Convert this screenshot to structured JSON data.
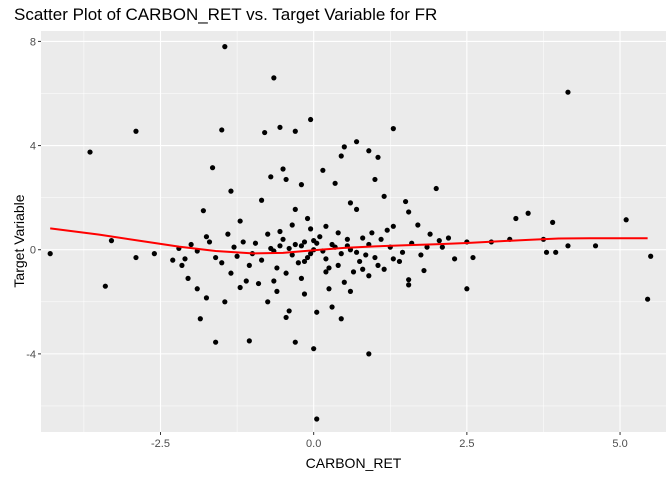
{
  "chart_data": {
    "type": "scatter",
    "title": "Scatter Plot of CARBON_RET vs. Target Variable for FR",
    "xlabel": "CARBON_RET",
    "ylabel": "Target Variable",
    "xlim": [
      -4.45,
      5.75
    ],
    "ylim": [
      -7.0,
      8.4
    ],
    "x_ticks": [
      -2.5,
      0.0,
      2.5,
      5.0
    ],
    "x_tick_labels": [
      "-2.5",
      "0.0",
      "2.5",
      "5.0"
    ],
    "y_ticks": [
      -4,
      0,
      4,
      8
    ],
    "y_tick_labels": [
      "-4",
      "0",
      "4",
      "8"
    ],
    "grid": true,
    "legend": "none",
    "colors": {
      "panel": "#ebebeb",
      "grid_major": "#ffffff",
      "points": "#000000",
      "smooth_line": "#ff0000"
    },
    "series": [
      {
        "kind": "points",
        "points": [
          [
            -1.45,
            7.8
          ],
          [
            -0.65,
            6.6
          ],
          [
            4.15,
            6.05
          ],
          [
            -0.05,
            5.0
          ],
          [
            -2.9,
            4.55
          ],
          [
            -0.55,
            4.7
          ],
          [
            -0.3,
            4.55
          ],
          [
            -0.8,
            4.5
          ],
          [
            -1.5,
            4.6
          ],
          [
            1.3,
            4.65
          ],
          [
            0.7,
            4.15
          ],
          [
            -3.65,
            3.75
          ],
          [
            0.5,
            3.95
          ],
          [
            0.9,
            3.8
          ],
          [
            0.45,
            3.6
          ],
          [
            1.05,
            3.55
          ],
          [
            -0.5,
            3.1
          ],
          [
            -1.65,
            3.15
          ],
          [
            -0.7,
            2.8
          ],
          [
            -0.45,
            2.7
          ],
          [
            -0.2,
            2.5
          ],
          [
            0.35,
            2.55
          ],
          [
            0.15,
            3.05
          ],
          [
            -1.35,
            2.25
          ],
          [
            1.0,
            2.7
          ],
          [
            2.0,
            2.35
          ],
          [
            1.15,
            2.05
          ],
          [
            -0.85,
            1.9
          ],
          [
            -0.3,
            1.55
          ],
          [
            0.6,
            1.8
          ],
          [
            1.5,
            1.85
          ],
          [
            -1.8,
            1.5
          ],
          [
            0.7,
            1.55
          ],
          [
            1.55,
            1.45
          ],
          [
            -0.1,
            1.2
          ],
          [
            3.5,
            1.4
          ],
          [
            5.1,
            1.15
          ],
          [
            3.9,
            1.05
          ],
          [
            3.3,
            1.2
          ],
          [
            1.7,
            0.95
          ],
          [
            -1.2,
            1.1
          ],
          [
            0.2,
            0.9
          ],
          [
            -0.35,
            0.95
          ],
          [
            1.3,
            0.9
          ],
          [
            -3.3,
            0.35
          ],
          [
            -2.9,
            -0.3
          ],
          [
            -4.3,
            -0.15
          ],
          [
            -3.4,
            -1.4
          ],
          [
            -2.6,
            -0.15
          ],
          [
            -2.3,
            -0.4
          ],
          [
            -2.15,
            -0.6
          ],
          [
            -2.05,
            -1.1
          ],
          [
            -1.9,
            -1.5
          ],
          [
            -1.75,
            -1.85
          ],
          [
            -1.45,
            -2.0
          ],
          [
            -1.85,
            -2.65
          ],
          [
            -1.6,
            -3.55
          ],
          [
            -1.05,
            -3.5
          ],
          [
            -0.3,
            -3.55
          ],
          [
            0.0,
            -3.8
          ],
          [
            -0.75,
            -2.0
          ],
          [
            -0.4,
            -2.35
          ],
          [
            -0.45,
            -2.6
          ],
          [
            0.05,
            -2.4
          ],
          [
            0.3,
            -2.2
          ],
          [
            0.45,
            -2.65
          ],
          [
            0.9,
            -4.0
          ],
          [
            0.05,
            -6.5
          ],
          [
            1.55,
            -1.15
          ],
          [
            1.55,
            -1.35
          ],
          [
            2.5,
            -1.5
          ],
          [
            1.8,
            -0.8
          ],
          [
            1.15,
            -0.75
          ],
          [
            2.6,
            -0.3
          ],
          [
            3.8,
            -0.1
          ],
          [
            3.95,
            -0.1
          ],
          [
            4.6,
            0.15
          ],
          [
            4.15,
            0.15
          ],
          [
            3.75,
            0.4
          ],
          [
            5.45,
            -1.9
          ],
          [
            5.5,
            -0.25
          ],
          [
            -1.2,
            -1.45
          ],
          [
            -1.1,
            -1.2
          ],
          [
            -0.9,
            -1.3
          ],
          [
            -0.2,
            -1.1
          ],
          [
            0.25,
            -1.5
          ],
          [
            0.6,
            -1.6
          ],
          [
            -0.65,
            -1.2
          ],
          [
            0.9,
            -1.0
          ],
          [
            -1.35,
            -0.9
          ],
          [
            -0.6,
            -1.6
          ],
          [
            0.8,
            -0.75
          ],
          [
            0.2,
            -0.85
          ],
          [
            -0.15,
            -1.7
          ],
          [
            0.5,
            -1.25
          ],
          [
            2.2,
            0.45
          ],
          [
            2.5,
            0.3
          ],
          [
            2.9,
            0.3
          ],
          [
            3.2,
            0.4
          ],
          [
            1.9,
            0.6
          ],
          [
            1.2,
            0.75
          ],
          [
            -0.05,
            0.8
          ],
          [
            0.4,
            0.65
          ],
          [
            -0.55,
            0.7
          ],
          [
            -1.4,
            0.6
          ],
          [
            -1.7,
            0.3
          ],
          [
            -2.0,
            0.2
          ],
          [
            -2.2,
            0.05
          ],
          [
            2.3,
            -0.35
          ],
          [
            2.1,
            0.1
          ],
          [
            1.75,
            -0.2
          ],
          [
            1.4,
            -0.45
          ],
          [
            1.0,
            -0.3
          ],
          [
            0.7,
            -0.1
          ],
          [
            0.35,
            0.1
          ],
          [
            0.0,
            0.0
          ],
          [
            -0.35,
            -0.2
          ],
          [
            -0.7,
            0.05
          ],
          [
            -1.0,
            -0.15
          ],
          [
            -1.3,
            0.1
          ],
          [
            -1.6,
            -0.3
          ],
          [
            -1.9,
            -0.05
          ],
          [
            0.2,
            -0.35
          ],
          [
            -0.15,
            0.3
          ],
          [
            0.55,
            0.4
          ],
          [
            -0.5,
            0.4
          ],
          [
            0.9,
            0.2
          ],
          [
            -0.85,
            -0.4
          ],
          [
            1.25,
            0.1
          ],
          [
            -1.15,
            0.3
          ],
          [
            1.6,
            0.25
          ],
          [
            -1.5,
            -0.5
          ],
          [
            0.1,
            0.5
          ],
          [
            0.75,
            -0.45
          ],
          [
            -0.25,
            -0.5
          ],
          [
            1.05,
            -0.6
          ],
          [
            -0.6,
            -0.7
          ],
          [
            0.4,
            -0.6
          ],
          [
            1.85,
            0.1
          ],
          [
            -1.75,
            0.5
          ],
          [
            0.15,
            -0.05
          ],
          [
            -0.05,
            -0.15
          ],
          [
            0.3,
            0.2
          ],
          [
            -0.4,
            0.05
          ],
          [
            0.6,
            0.0
          ],
          [
            -0.2,
            0.15
          ],
          [
            0.05,
            0.25
          ],
          [
            -0.1,
            -0.3
          ],
          [
            0.45,
            -0.15
          ],
          [
            -0.3,
            0.2
          ],
          [
            0.8,
            0.45
          ],
          [
            -0.75,
            0.6
          ],
          [
            1.1,
            0.4
          ],
          [
            -0.95,
            0.25
          ],
          [
            1.45,
            -0.1
          ],
          [
            -1.25,
            -0.25
          ],
          [
            2.05,
            0.35
          ],
          [
            -2.1,
            -0.35
          ],
          [
            0.25,
            -0.7
          ],
          [
            -0.45,
            -0.9
          ],
          [
            0.65,
            -0.85
          ],
          [
            1.3,
            -0.35
          ],
          [
            -1.05,
            -0.6
          ],
          [
            0.95,
            0.65
          ],
          [
            -0.65,
            -0.05
          ],
          [
            0.0,
            0.35
          ],
          [
            -0.15,
            -0.45
          ],
          [
            0.55,
            0.15
          ],
          [
            -0.55,
            0.15
          ],
          [
            0.85,
            -0.2
          ]
        ]
      },
      {
        "kind": "smooth-line",
        "points": [
          [
            -4.3,
            0.82
          ],
          [
            -3.5,
            0.58
          ],
          [
            -2.8,
            0.33
          ],
          [
            -2.2,
            0.12
          ],
          [
            -1.6,
            -0.05
          ],
          [
            -1.0,
            -0.14
          ],
          [
            -0.5,
            -0.12
          ],
          [
            0.0,
            -0.02
          ],
          [
            0.5,
            0.07
          ],
          [
            1.0,
            0.13
          ],
          [
            1.5,
            0.17
          ],
          [
            2.0,
            0.21
          ],
          [
            2.5,
            0.26
          ],
          [
            3.0,
            0.32
          ],
          [
            3.5,
            0.38
          ],
          [
            4.0,
            0.43
          ],
          [
            4.5,
            0.44
          ],
          [
            5.0,
            0.44
          ],
          [
            5.45,
            0.44
          ]
        ]
      }
    ]
  }
}
